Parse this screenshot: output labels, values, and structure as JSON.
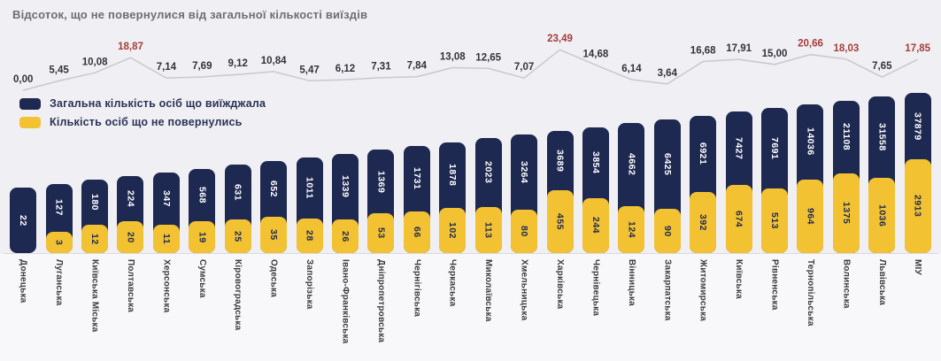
{
  "title": "Відсоток, що не повернулися від загальної кількості виїздів",
  "legend": [
    {
      "label": "Загальна кількість осіб що виїжджала",
      "color": "#1e2951"
    },
    {
      "label": "Кількість осіб що не повернулись",
      "color": "#f3c233"
    }
  ],
  "colors": {
    "background": "#f0eff3",
    "bar_total": "#1e2951",
    "bar_not_returned": "#f3c233",
    "trend_line": "#c9c8cf",
    "pct_label": "#33333b",
    "pct_label_highlight": "#a43e3b",
    "title_text": "#6e6e72",
    "value_on_dark": "#ffffff",
    "value_on_yellow": "#1e2951",
    "category_label": "#3c3c40"
  },
  "chart_data": {
    "type": "combo",
    "grid": false,
    "legend_position": "top-left",
    "value_labels": true,
    "categories": [
      "Донецька",
      "Луганська",
      "Київська Міська",
      "Полтавська",
      "Херсонська",
      "Сумська",
      "Кіровоградська",
      "Одеська",
      "Запорізька",
      "Івано-Франківська",
      "Дніпропетровська",
      "Чернігівська",
      "Черкаська",
      "Миколаївська",
      "Хмельницька",
      "Харківська",
      "Чернівецька",
      "Вінницька",
      "Закарпатська",
      "Житомирська",
      "Київська",
      "Рівненська",
      "Тернопільська",
      "Волинська",
      "Львівська",
      "МІУ"
    ],
    "series": [
      {
        "name": "Загальна кількість осіб що виїжджала",
        "type": "bar",
        "color": "#1e2951",
        "values": [
          22,
          127,
          180,
          224,
          347,
          568,
          631,
          652,
          1011,
          1339,
          1369,
          1731,
          1878,
          2023,
          3264,
          3689,
          3854,
          4662,
          6425,
          6921,
          7427,
          7691,
          14036,
          21108,
          31558,
          37879
        ]
      },
      {
        "name": "Кількість осіб що не повернулись",
        "type": "bar",
        "color": "#f3c233",
        "values": [
          0,
          3,
          12,
          20,
          11,
          19,
          25,
          35,
          28,
          26,
          53,
          66,
          102,
          113,
          80,
          455,
          244,
          124,
          90,
          392,
          674,
          513,
          964,
          1375,
          1036,
          2913
        ]
      },
      {
        "name": "Відсоток, що не повернулися від загальної кількості виїздів",
        "type": "line",
        "color": "#c9c8cf",
        "values": [
          0.0,
          5.45,
          10.08,
          18.87,
          7.14,
          7.69,
          9.12,
          10.84,
          5.47,
          6.12,
          7.31,
          7.84,
          13.08,
          12.65,
          7.07,
          23.49,
          14.68,
          6.14,
          3.64,
          16.68,
          17.91,
          15.0,
          20.66,
          18.03,
          7.65,
          17.85
        ],
        "labels": [
          "0,00",
          "5,45",
          "10,08",
          "18,87",
          "7,14",
          "7,69",
          "9,12",
          "10,84",
          "5,47",
          "6,12",
          "7,31",
          "7,84",
          "13,08",
          "12,65",
          "7,07",
          "23,49",
          "14,68",
          "6,14",
          "3,64",
          "16,68",
          "17,91",
          "15,00",
          "20,66",
          "18,03",
          "7,65",
          "17,85"
        ],
        "highlighted_indices": [
          3,
          15,
          22,
          23,
          25
        ],
        "label_color": "#33333b",
        "highlight_color": "#a43e3b"
      }
    ]
  }
}
